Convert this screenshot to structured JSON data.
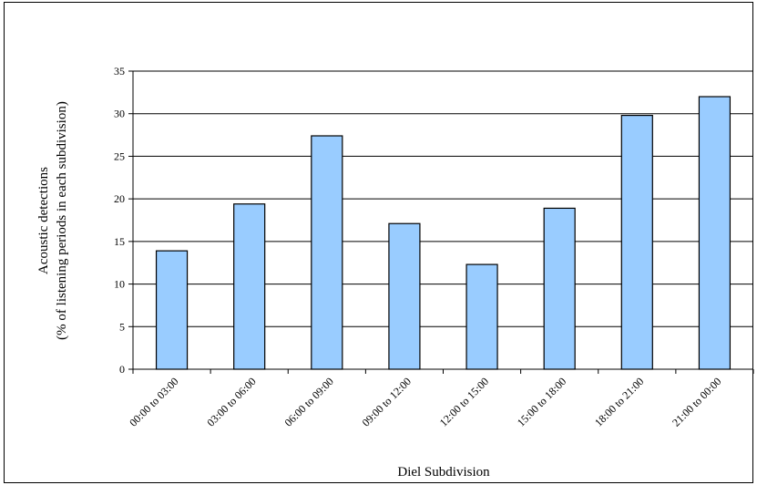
{
  "chart_data": {
    "type": "bar",
    "categories": [
      "00:00 to 03:00",
      "03:00 to 06:00",
      "06:00 to 09:00",
      "09:00 to 12:00",
      "12:00 to 15:00",
      "15:00 to 18:00",
      "18:00 to 21:00",
      "21:00 to 00:00"
    ],
    "values": [
      13.9,
      19.4,
      27.4,
      17.1,
      12.3,
      18.9,
      29.8,
      32.0
    ],
    "xlabel": "Diel Subdivision",
    "ylabel_line1": "Acoustic detections",
    "ylabel_line2": "(% of listening periods in each subdivision)",
    "ylim": [
      0,
      35
    ],
    "yticks": [
      "0",
      "5",
      "10",
      "15",
      "20",
      "25",
      "30",
      "35"
    ],
    "grid": true,
    "bar_color": "#99CCFF",
    "bar_edge_color": "#000000"
  }
}
